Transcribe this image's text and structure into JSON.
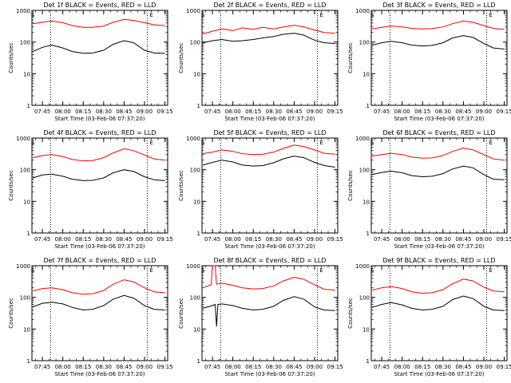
{
  "chart_data": [
    {
      "type": "line",
      "title": "Det 1f BLACK = Events, RED = LLD",
      "xlabel": "Start Time (03-Feb-06 07:37:20)",
      "ylabel": "Counts/sec",
      "yscale": "log",
      "ylim": [
        1,
        1000
      ],
      "x_ticks": [
        "07:45",
        "08:00",
        "08:15",
        "08:30",
        "08:45",
        "09:00",
        "09:15"
      ],
      "y_ticks": [
        "1",
        "10",
        "100",
        "1000"
      ],
      "markers": [
        {
          "label": "S",
          "x": "07:38"
        },
        {
          "label": "E",
          "x": "09:05"
        }
      ],
      "dotted_lines_x": [
        "07:51",
        "09:02"
      ],
      "series": [
        {
          "color": "#ff0000",
          "x": [
            "07:38",
            "07:45",
            "07:52",
            "08:00",
            "08:07",
            "08:15",
            "08:22",
            "08:30",
            "08:37",
            "08:45",
            "08:52",
            "09:00",
            "09:07",
            "09:15"
          ],
          "values": [
            380,
            420,
            460,
            410,
            330,
            290,
            290,
            320,
            420,
            520,
            480,
            410,
            350,
            330
          ]
        },
        {
          "color": "#000000",
          "x": [
            "07:38",
            "07:45",
            "07:52",
            "08:00",
            "08:07",
            "08:15",
            "08:22",
            "08:30",
            "08:37",
            "08:45",
            "08:52",
            "09:00",
            "09:07",
            "09:15"
          ],
          "values": [
            50,
            68,
            80,
            65,
            50,
            44,
            45,
            55,
            85,
            110,
            95,
            55,
            45,
            44
          ]
        }
      ]
    },
    {
      "type": "line",
      "title": "Det 2f BLACK = Events, RED = LLD",
      "xlabel": "Start Time (03-Feb-06 07:37:20)",
      "ylabel": "Counts/sec",
      "yscale": "log",
      "ylim": [
        1,
        1000
      ],
      "x_ticks": [
        "07:45",
        "08:00",
        "08:15",
        "08:30",
        "08:45",
        "09:00",
        "09:15"
      ],
      "y_ticks": [
        "1",
        "10",
        "100",
        "1000"
      ],
      "markers": [
        {
          "label": "S",
          "x": "07:38"
        },
        {
          "label": "E",
          "x": "09:05"
        }
      ],
      "dotted_lines_x": [
        "07:51",
        "09:02"
      ],
      "series": [
        {
          "color": "#ff0000",
          "x": [
            "07:38",
            "07:45",
            "07:52",
            "08:00",
            "08:07",
            "08:15",
            "08:22",
            "08:30",
            "08:37",
            "08:45",
            "08:52",
            "09:00",
            "09:07",
            "09:15"
          ],
          "values": [
            180,
            220,
            260,
            230,
            280,
            250,
            290,
            260,
            300,
            340,
            300,
            240,
            200,
            190
          ]
        },
        {
          "color": "#000000",
          "x": [
            "07:38",
            "07:45",
            "07:52",
            "08:00",
            "08:07",
            "08:15",
            "08:22",
            "08:30",
            "08:37",
            "08:45",
            "08:52",
            "09:00",
            "09:07",
            "09:15"
          ],
          "values": [
            95,
            110,
            120,
            105,
            110,
            120,
            135,
            150,
            175,
            190,
            165,
            115,
            95,
            90
          ]
        }
      ]
    },
    {
      "type": "line",
      "title": "Det 3f BLACK = Events, RED = LLD",
      "xlabel": "Start Time (03-Feb-06 07:37:20)",
      "ylabel": "Counts/sec",
      "yscale": "log",
      "ylim": [
        1,
        1000
      ],
      "x_ticks": [
        "07:45",
        "08:00",
        "08:15",
        "08:30",
        "08:45",
        "09:00",
        "09:15"
      ],
      "y_ticks": [
        "1",
        "10",
        "100",
        "1000"
      ],
      "markers": [
        {
          "label": "S",
          "x": "07:38"
        },
        {
          "label": "E",
          "x": "09:05"
        }
      ],
      "dotted_lines_x": [
        "07:51",
        "09:02"
      ],
      "series": [
        {
          "color": "#ff0000",
          "x": [
            "07:38",
            "07:45",
            "07:52",
            "08:00",
            "08:07",
            "08:15",
            "08:22",
            "08:30",
            "08:37",
            "08:45",
            "08:52",
            "09:00",
            "09:07",
            "09:15"
          ],
          "values": [
            260,
            290,
            320,
            300,
            270,
            260,
            265,
            300,
            380,
            460,
            420,
            330,
            270,
            250
          ]
        },
        {
          "color": "#000000",
          "x": [
            "07:38",
            "07:45",
            "07:52",
            "08:00",
            "08:07",
            "08:15",
            "08:22",
            "08:30",
            "08:37",
            "08:45",
            "08:52",
            "09:00",
            "09:07",
            "09:15"
          ],
          "values": [
            80,
            95,
            105,
            95,
            80,
            75,
            78,
            95,
            135,
            160,
            140,
            90,
            65,
            60
          ]
        }
      ]
    },
    {
      "type": "line",
      "title": "Det 4f BLACK = Events, RED = LLD",
      "xlabel": "Start Time (03-Feb-06 07:37:20)",
      "ylabel": "Counts/sec",
      "yscale": "log",
      "ylim": [
        1,
        1000
      ],
      "x_ticks": [
        "07:45",
        "08:00",
        "08:15",
        "08:30",
        "08:45",
        "09:00",
        "09:15"
      ],
      "y_ticks": [
        "1",
        "10",
        "100",
        "1000"
      ],
      "markers": [
        {
          "label": "S",
          "x": "07:38"
        },
        {
          "label": "E",
          "x": "09:05"
        }
      ],
      "dotted_lines_x": [
        "07:51",
        "09:02"
      ],
      "series": [
        {
          "color": "#ff0000",
          "x": [
            "07:38",
            "07:45",
            "07:52",
            "08:00",
            "08:07",
            "08:15",
            "08:22",
            "08:30",
            "08:37",
            "08:45",
            "08:52",
            "09:00",
            "09:07",
            "09:15"
          ],
          "values": [
            240,
            280,
            300,
            260,
            210,
            190,
            195,
            240,
            340,
            460,
            400,
            290,
            220,
            200
          ]
        },
        {
          "color": "#000000",
          "x": [
            "07:38",
            "07:45",
            "07:52",
            "08:00",
            "08:07",
            "08:15",
            "08:22",
            "08:30",
            "08:37",
            "08:45",
            "08:52",
            "09:00",
            "09:07",
            "09:15"
          ],
          "values": [
            55,
            68,
            72,
            62,
            50,
            45,
            46,
            55,
            80,
            100,
            88,
            60,
            48,
            45
          ]
        }
      ]
    },
    {
      "type": "line",
      "title": "Det 5f BLACK = Events, RED = LLD",
      "xlabel": "Start Time (03-Feb-06 07:37:20)",
      "ylabel": "Counts/sec",
      "yscale": "log",
      "ylim": [
        1,
        1000
      ],
      "x_ticks": [
        "07:45",
        "08:00",
        "08:15",
        "08:30",
        "08:45",
        "09:00",
        "09:15"
      ],
      "y_ticks": [
        "1",
        "10",
        "100",
        "1000"
      ],
      "markers": [
        {
          "label": "S",
          "x": "07:38"
        },
        {
          "label": "E",
          "x": "09:05"
        }
      ],
      "dotted_lines_x": [
        "07:51",
        "09:02"
      ],
      "series": [
        {
          "color": "#ff0000",
          "x": [
            "07:38",
            "07:45",
            "07:52",
            "08:00",
            "08:07",
            "08:15",
            "08:22",
            "08:30",
            "08:37",
            "08:45",
            "08:52",
            "09:00",
            "09:07",
            "09:15"
          ],
          "values": [
            320,
            360,
            420,
            380,
            320,
            300,
            310,
            360,
            470,
            600,
            540,
            420,
            330,
            310
          ]
        },
        {
          "color": "#000000",
          "x": [
            "07:38",
            "07:45",
            "07:52",
            "08:00",
            "08:07",
            "08:15",
            "08:22",
            "08:30",
            "08:37",
            "08:45",
            "08:52",
            "09:00",
            "09:07",
            "09:15"
          ],
          "values": [
            140,
            170,
            200,
            175,
            140,
            130,
            135,
            165,
            220,
            270,
            240,
            170,
            135,
            120
          ]
        }
      ]
    },
    {
      "type": "line",
      "title": "Det 6f BLACK = Events, RED = LLD",
      "xlabel": "Start Time (03-Feb-06 07:37:20)",
      "ylabel": "Counts/sec",
      "yscale": "log",
      "ylim": [
        1,
        1000
      ],
      "x_ticks": [
        "07:45",
        "08:00",
        "08:15",
        "08:30",
        "08:45",
        "09:00",
        "09:15"
      ],
      "y_ticks": [
        "1",
        "10",
        "100",
        "1000"
      ],
      "markers": [
        {
          "label": "S",
          "x": "07:38"
        },
        {
          "label": "E",
          "x": "09:05"
        }
      ],
      "dotted_lines_x": [
        "07:51",
        "09:02"
      ],
      "series": [
        {
          "color": "#ff0000",
          "x": [
            "07:38",
            "07:45",
            "07:52",
            "08:00",
            "08:07",
            "08:15",
            "08:22",
            "08:30",
            "08:37",
            "08:45",
            "08:52",
            "09:00",
            "09:07",
            "09:15"
          ],
          "values": [
            270,
            300,
            330,
            300,
            250,
            230,
            235,
            280,
            380,
            480,
            420,
            300,
            220,
            200
          ]
        },
        {
          "color": "#000000",
          "x": [
            "07:38",
            "07:45",
            "07:52",
            "08:00",
            "08:07",
            "08:15",
            "08:22",
            "08:30",
            "08:37",
            "08:45",
            "08:52",
            "09:00",
            "09:07",
            "09:15"
          ],
          "values": [
            70,
            82,
            90,
            80,
            65,
            60,
            62,
            75,
            105,
            130,
            115,
            70,
            50,
            48
          ]
        }
      ]
    },
    {
      "type": "line",
      "title": "Det 7f BLACK = Events, RED = LLD",
      "xlabel": "Start Time (03-Feb-06 07:37:20)",
      "ylabel": "Counts/sec",
      "yscale": "log",
      "ylim": [
        1,
        1000
      ],
      "x_ticks": [
        "07:45",
        "08:00",
        "08:15",
        "08:30",
        "08:45",
        "09:00",
        "09:15"
      ],
      "y_ticks": [
        "1",
        "10",
        "100",
        "1000"
      ],
      "markers": [
        {
          "label": "S",
          "x": "07:38"
        },
        {
          "label": "E",
          "x": "09:05"
        }
      ],
      "dotted_lines_x": [
        "07:51",
        "09:02"
      ],
      "series": [
        {
          "color": "#ff0000",
          "x": [
            "07:38",
            "07:45",
            "07:52",
            "08:00",
            "08:07",
            "08:15",
            "08:22",
            "08:30",
            "08:37",
            "08:45",
            "08:52",
            "09:00",
            "09:07",
            "09:15"
          ],
          "values": [
            160,
            190,
            200,
            175,
            140,
            125,
            130,
            165,
            260,
            360,
            310,
            200,
            150,
            140
          ]
        },
        {
          "color": "#000000",
          "x": [
            "07:38",
            "07:45",
            "07:52",
            "08:00",
            "08:07",
            "08:15",
            "08:22",
            "08:30",
            "08:37",
            "08:45",
            "08:52",
            "09:00",
            "09:07",
            "09:15"
          ],
          "values": [
            50,
            65,
            70,
            62,
            48,
            40,
            42,
            55,
            88,
            115,
            95,
            55,
            42,
            40
          ]
        }
      ]
    },
    {
      "type": "line",
      "title": "Det 8f BLACK = Events, RED = LLD",
      "xlabel": "Start Time (03-Feb-06 07:37:20)",
      "ylabel": "Counts/sec",
      "yscale": "log",
      "ylim": [
        1,
        1000
      ],
      "x_ticks": [
        "07:45",
        "08:00",
        "08:15",
        "08:30",
        "08:45",
        "09:00",
        "09:15"
      ],
      "y_ticks": [
        "1",
        "10",
        "100",
        "1000"
      ],
      "markers": [
        {
          "label": "S",
          "x": "07:38"
        },
        {
          "label": "E",
          "x": "09:05"
        }
      ],
      "dotted_lines_x": [
        "07:51",
        "09:02"
      ],
      "series": [
        {
          "color": "#ff0000",
          "x": [
            "07:38",
            "07:44",
            "07:45",
            "07:47",
            "07:48",
            "07:52",
            "08:00",
            "08:07",
            "08:15",
            "08:22",
            "08:30",
            "08:37",
            "08:45",
            "08:52",
            "09:00",
            "09:07",
            "09:15"
          ],
          "values": [
            200,
            250,
            1000,
            1000,
            260,
            280,
            240,
            200,
            185,
            190,
            230,
            330,
            430,
            370,
            250,
            180,
            170
          ]
        },
        {
          "color": "#000000",
          "x": [
            "07:38",
            "07:45",
            "07:47",
            "07:48",
            "07:49",
            "07:52",
            "08:00",
            "08:07",
            "08:15",
            "08:22",
            "08:30",
            "08:37",
            "08:45",
            "08:52",
            "09:00",
            "09:07",
            "09:15"
          ],
          "values": [
            45,
            55,
            60,
            12,
            60,
            62,
            55,
            45,
            40,
            42,
            52,
            80,
            105,
            88,
            50,
            40,
            38
          ]
        }
      ]
    },
    {
      "type": "line",
      "title": "Det 9f BLACK = Events, RED = LLD",
      "xlabel": "Start Time (03-Feb-06 07:37:20)",
      "ylabel": "Counts/sec",
      "yscale": "log",
      "ylim": [
        1,
        1000
      ],
      "x_ticks": [
        "07:45",
        "08:00",
        "08:15",
        "08:30",
        "08:45",
        "09:00",
        "09:15"
      ],
      "y_ticks": [
        "1",
        "10",
        "100",
        "1000"
      ],
      "markers": [
        {
          "label": "S",
          "x": "07:38"
        },
        {
          "label": "E",
          "x": "09:05"
        }
      ],
      "dotted_lines_x": [
        "07:51",
        "09:02"
      ],
      "series": [
        {
          "color": "#ff0000",
          "x": [
            "07:38",
            "07:45",
            "07:52",
            "08:00",
            "08:07",
            "08:15",
            "08:22",
            "08:30",
            "08:37",
            "08:45",
            "08:52",
            "09:00",
            "09:07",
            "09:15"
          ],
          "values": [
            170,
            200,
            220,
            190,
            150,
            135,
            140,
            175,
            270,
            380,
            330,
            210,
            160,
            150
          ]
        },
        {
          "color": "#000000",
          "x": [
            "07:38",
            "07:45",
            "07:52",
            "08:00",
            "08:07",
            "08:15",
            "08:22",
            "08:30",
            "08:37",
            "08:45",
            "08:52",
            "09:00",
            "09:07",
            "09:15"
          ],
          "values": [
            48,
            60,
            68,
            58,
            45,
            40,
            42,
            52,
            85,
            110,
            92,
            52,
            40,
            38
          ]
        }
      ]
    }
  ]
}
